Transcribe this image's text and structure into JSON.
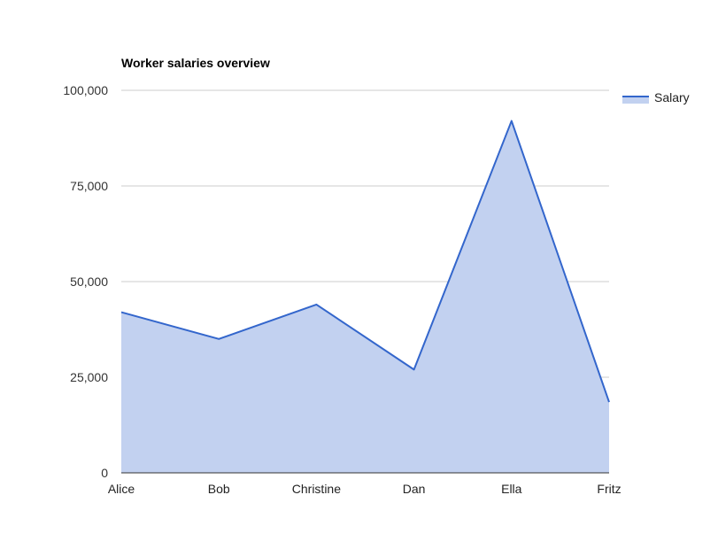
{
  "chart_data": {
    "type": "area",
    "title": "Worker salaries overview",
    "categories": [
      "Alice",
      "Bob",
      "Christine",
      "Dan",
      "Ella",
      "Fritz"
    ],
    "series": [
      {
        "name": "Salary",
        "values": [
          42000,
          35000,
          44000,
          27000,
          92000,
          18500
        ]
      }
    ],
    "ylim": [
      0,
      100000
    ],
    "yticks": [
      0,
      25000,
      50000,
      75000,
      100000
    ],
    "ytick_labels": [
      "0",
      "25,000",
      "50,000",
      "75,000",
      "100,000"
    ],
    "grid": true,
    "legend_position": "right",
    "colors": {
      "line": "#3366cc",
      "fill": "#c2d1f0",
      "grid": "#cccccc",
      "axis": "#333333"
    }
  }
}
